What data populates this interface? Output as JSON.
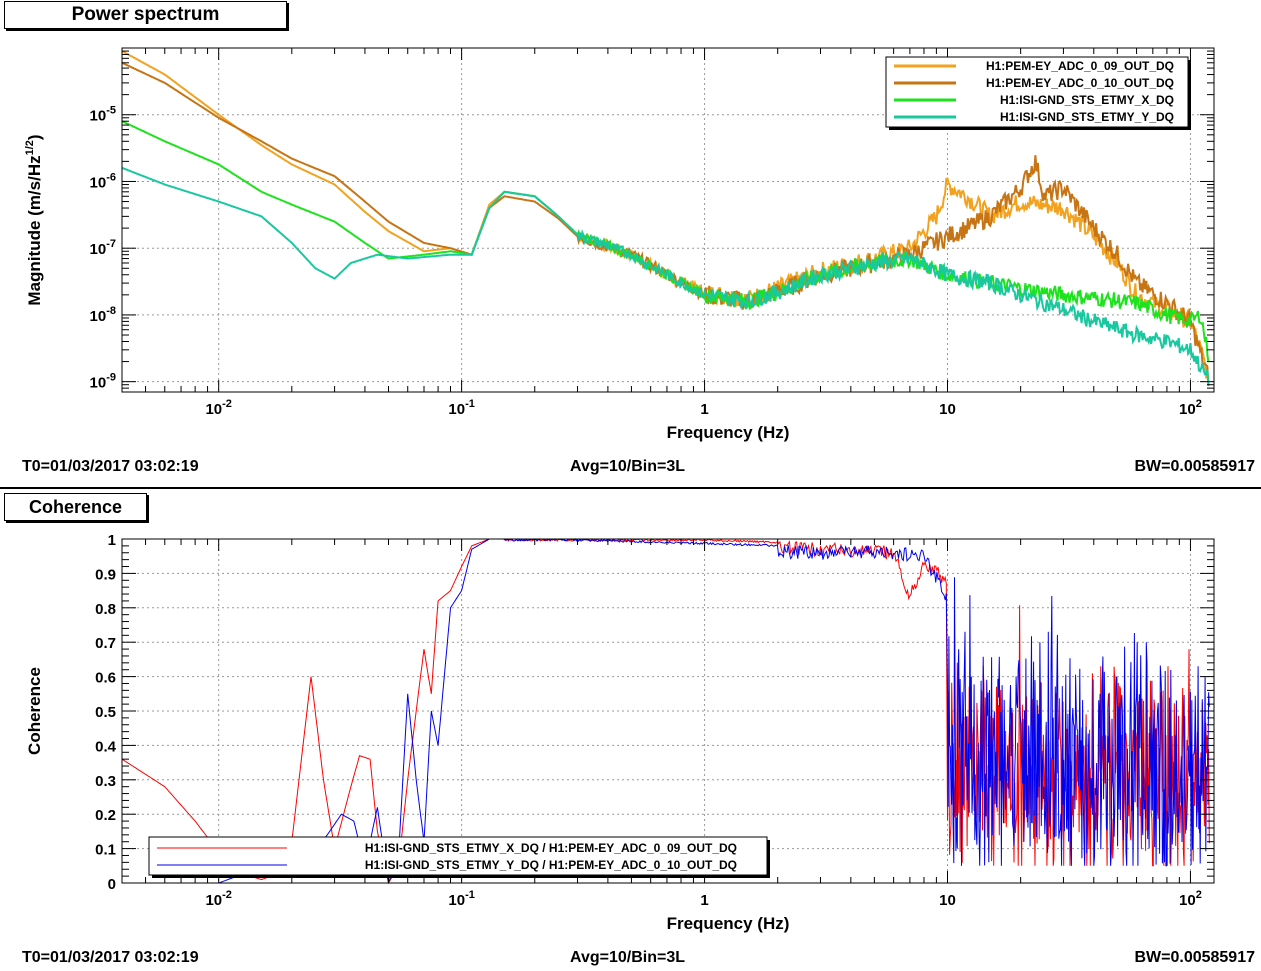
{
  "top_panel": {
    "tab": "Power spectrum",
    "info": {
      "t0": "T0=01/03/2017 03:02:19",
      "avg": "Avg=10/Bin=3L",
      "bw": "BW=0.00585917"
    }
  },
  "bottom_panel": {
    "tab": "Coherence",
    "info": {
      "t0": "T0=01/03/2017 03:02:19",
      "avg": "Avg=10/Bin=3L",
      "bw": "BW=0.00585917"
    }
  },
  "colors": {
    "orange": "#f2a21e",
    "brown": "#c77415",
    "green": "#1ee21e",
    "teal": "#1ac8a0",
    "red": "#ff0000",
    "blue": "#0000ee"
  },
  "chart_data": [
    {
      "type": "line",
      "xlabel": "Frequency (Hz)",
      "ylabel": "Magnitude (m/s/Hz^1/2)",
      "xscale": "log",
      "yscale": "log",
      "xlim": [
        0.004,
        125
      ],
      "ylim": [
        7e-10,
        0.0001
      ],
      "grid": true,
      "legend": "top-right",
      "xticks": [
        {
          "v": 0.01,
          "label": "10^-2"
        },
        {
          "v": 0.1,
          "label": "10^-1"
        },
        {
          "v": 1,
          "label": "1"
        },
        {
          "v": 10,
          "label": "10"
        },
        {
          "v": 100,
          "label": "10^2"
        }
      ],
      "yticks": [
        {
          "v": 1e-09,
          "label": "10^-9"
        },
        {
          "v": 1e-08,
          "label": "10^-8"
        },
        {
          "v": 1e-07,
          "label": "10^-7"
        },
        {
          "v": 1e-06,
          "label": "10^-6"
        },
        {
          "v": 1e-05,
          "label": "10^-5"
        }
      ],
      "series": [
        {
          "name": "H1:PEM-EY_ADC_0_09_OUT_DQ",
          "color": "#f2a21e",
          "noise": 0.18,
          "points": [
            [
              0.004,
              9e-05
            ],
            [
              0.006,
              4e-05
            ],
            [
              0.01,
              1e-05
            ],
            [
              0.015,
              3.5e-06
            ],
            [
              0.02,
              1.8e-06
            ],
            [
              0.03,
              9e-07
            ],
            [
              0.04,
              3.5e-07
            ],
            [
              0.05,
              1.8e-07
            ],
            [
              0.07,
              9e-08
            ],
            [
              0.09,
              1e-07
            ],
            [
              0.11,
              8e-08
            ],
            [
              0.13,
              4.5e-07
            ],
            [
              0.15,
              7e-07
            ],
            [
              0.2,
              6e-07
            ],
            [
              0.25,
              3e-07
            ],
            [
              0.3,
              1.6e-07
            ],
            [
              0.5,
              8e-08
            ],
            [
              0.7,
              4e-08
            ],
            [
              1,
              2.2e-08
            ],
            [
              1.5,
              1.7e-08
            ],
            [
              2,
              2.5e-08
            ],
            [
              3,
              4.5e-08
            ],
            [
              5,
              7e-08
            ],
            [
              7,
              1e-07
            ],
            [
              9,
              3e-07
            ],
            [
              10,
              9e-07
            ],
            [
              12,
              6e-07
            ],
            [
              15,
              3e-07
            ],
            [
              20,
              5e-07
            ],
            [
              30,
              4e-07
            ],
            [
              40,
              1.5e-07
            ],
            [
              50,
              6e-08
            ],
            [
              60,
              2e-08
            ],
            [
              80,
              1.2e-08
            ],
            [
              100,
              8e-09
            ],
            [
              110,
              3e-09
            ],
            [
              120,
              1e-09
            ]
          ]
        },
        {
          "name": "H1:PEM-EY_ADC_0_10_OUT_DQ",
          "color": "#c77415",
          "noise": 0.18,
          "points": [
            [
              0.004,
              6e-05
            ],
            [
              0.006,
              3e-05
            ],
            [
              0.01,
              9e-06
            ],
            [
              0.015,
              4e-06
            ],
            [
              0.02,
              2.2e-06
            ],
            [
              0.03,
              1.2e-06
            ],
            [
              0.04,
              5e-07
            ],
            [
              0.05,
              2.5e-07
            ],
            [
              0.07,
              1.2e-07
            ],
            [
              0.09,
              1e-07
            ],
            [
              0.11,
              8e-08
            ],
            [
              0.13,
              4e-07
            ],
            [
              0.15,
              6e-07
            ],
            [
              0.2,
              5e-07
            ],
            [
              0.25,
              2.8e-07
            ],
            [
              0.3,
              1.5e-07
            ],
            [
              0.5,
              8e-08
            ],
            [
              0.7,
              4e-08
            ],
            [
              1,
              2e-08
            ],
            [
              1.5,
              1.6e-08
            ],
            [
              2,
              2.2e-08
            ],
            [
              3,
              4e-08
            ],
            [
              5,
              6e-08
            ],
            [
              7,
              8e-08
            ],
            [
              10,
              1.5e-07
            ],
            [
              12,
              2e-07
            ],
            [
              15,
              3e-07
            ],
            [
              20,
              8e-07
            ],
            [
              23,
              2e-06
            ],
            [
              25,
              6e-07
            ],
            [
              30,
              8e-07
            ],
            [
              40,
              2e-07
            ],
            [
              50,
              8e-08
            ],
            [
              60,
              3e-08
            ],
            [
              80,
              1.5e-08
            ],
            [
              100,
              8e-09
            ],
            [
              120,
              1e-09
            ]
          ]
        },
        {
          "name": "H1:ISI-GND_STS_ETMY_X_DQ",
          "color": "#1ee21e",
          "noise": 0.15,
          "points": [
            [
              0.004,
              8e-06
            ],
            [
              0.006,
              4e-06
            ],
            [
              0.01,
              1.8e-06
            ],
            [
              0.015,
              7e-07
            ],
            [
              0.02,
              4.5e-07
            ],
            [
              0.03,
              2.5e-07
            ],
            [
              0.04,
              1.2e-07
            ],
            [
              0.05,
              7e-08
            ],
            [
              0.07,
              8e-08
            ],
            [
              0.09,
              9e-08
            ],
            [
              0.11,
              8e-08
            ],
            [
              0.13,
              4e-07
            ],
            [
              0.15,
              7e-07
            ],
            [
              0.2,
              6e-07
            ],
            [
              0.25,
              3e-07
            ],
            [
              0.3,
              1.6e-07
            ],
            [
              0.5,
              8e-08
            ],
            [
              0.7,
              4e-08
            ],
            [
              1,
              2e-08
            ],
            [
              1.5,
              1.6e-08
            ],
            [
              2,
              2.2e-08
            ],
            [
              3,
              4e-08
            ],
            [
              5,
              6e-08
            ],
            [
              7,
              7e-08
            ],
            [
              10,
              4e-08
            ],
            [
              15,
              3e-08
            ],
            [
              20,
              2.5e-08
            ],
            [
              30,
              2e-08
            ],
            [
              40,
              1.8e-08
            ],
            [
              60,
              1.5e-08
            ],
            [
              80,
              1e-08
            ],
            [
              100,
              8e-09
            ],
            [
              110,
              1e-08
            ],
            [
              120,
              2e-09
            ]
          ]
        },
        {
          "name": "H1:ISI-GND_STS_ETMY_Y_DQ",
          "color": "#1ac8a0",
          "noise": 0.15,
          "points": [
            [
              0.004,
              1.6e-06
            ],
            [
              0.006,
              9e-07
            ],
            [
              0.01,
              5e-07
            ],
            [
              0.015,
              3e-07
            ],
            [
              0.02,
              1.2e-07
            ],
            [
              0.025,
              5e-08
            ],
            [
              0.03,
              3.5e-08
            ],
            [
              0.035,
              6e-08
            ],
            [
              0.045,
              8e-08
            ],
            [
              0.06,
              7e-08
            ],
            [
              0.09,
              8e-08
            ],
            [
              0.11,
              8e-08
            ],
            [
              0.13,
              4e-07
            ],
            [
              0.15,
              7e-07
            ],
            [
              0.2,
              6e-07
            ],
            [
              0.25,
              3e-07
            ],
            [
              0.3,
              1.6e-07
            ],
            [
              0.5,
              8e-08
            ],
            [
              0.7,
              4e-08
            ],
            [
              1,
              2e-08
            ],
            [
              1.5,
              1.6e-08
            ],
            [
              2,
              2.2e-08
            ],
            [
              3,
              4e-08
            ],
            [
              5,
              6e-08
            ],
            [
              7,
              7e-08
            ],
            [
              10,
              4e-08
            ],
            [
              15,
              3e-08
            ],
            [
              20,
              2e-08
            ],
            [
              30,
              1.2e-08
            ],
            [
              40,
              8e-09
            ],
            [
              60,
              5e-09
            ],
            [
              80,
              4e-09
            ],
            [
              100,
              3e-09
            ],
            [
              120,
              1e-09
            ]
          ]
        }
      ]
    },
    {
      "type": "line",
      "xlabel": "Frequency (Hz)",
      "ylabel": "Coherence",
      "xscale": "log",
      "xlim": [
        0.004,
        125
      ],
      "ylim": [
        0,
        1
      ],
      "grid": true,
      "legend": "bottom-left",
      "xticks": [
        {
          "v": 0.01,
          "label": "10^-2"
        },
        {
          "v": 0.1,
          "label": "10^-1"
        },
        {
          "v": 1,
          "label": "1"
        },
        {
          "v": 10,
          "label": "10"
        },
        {
          "v": 100,
          "label": "10^2"
        }
      ],
      "yticks": [
        {
          "v": 0,
          "label": "0"
        },
        {
          "v": 0.1,
          "label": "0.1"
        },
        {
          "v": 0.2,
          "label": "0.2"
        },
        {
          "v": 0.3,
          "label": "0.3"
        },
        {
          "v": 0.4,
          "label": "0.4"
        },
        {
          "v": 0.5,
          "label": "0.5"
        },
        {
          "v": 0.6,
          "label": "0.6"
        },
        {
          "v": 0.7,
          "label": "0.7"
        },
        {
          "v": 0.8,
          "label": "0.8"
        },
        {
          "v": 0.9,
          "label": "0.9"
        },
        {
          "v": 1,
          "label": "1"
        }
      ],
      "series": [
        {
          "name": "H1:ISI-GND_STS_ETMY_X_DQ / H1:PEM-EY_ADC_0_09_OUT_DQ",
          "color": "#ff0000",
          "points": [
            [
              0.004,
              0.36
            ],
            [
              0.006,
              0.28
            ],
            [
              0.008,
              0.18
            ],
            [
              0.01,
              0.09
            ],
            [
              0.012,
              0.03
            ],
            [
              0.015,
              0.01
            ],
            [
              0.018,
              0.03
            ],
            [
              0.02,
              0.12
            ],
            [
              0.024,
              0.6
            ],
            [
              0.027,
              0.3
            ],
            [
              0.03,
              0.1
            ],
            [
              0.035,
              0.28
            ],
            [
              0.038,
              0.37
            ],
            [
              0.042,
              0.36
            ],
            [
              0.045,
              0.15
            ],
            [
              0.05,
              0.0
            ],
            [
              0.055,
              0.05
            ],
            [
              0.06,
              0.3
            ],
            [
              0.065,
              0.5
            ],
            [
              0.07,
              0.68
            ],
            [
              0.075,
              0.55
            ],
            [
              0.08,
              0.82
            ],
            [
              0.09,
              0.85
            ],
            [
              0.1,
              0.92
            ],
            [
              0.11,
              0.98
            ],
            [
              0.13,
              1.0
            ],
            [
              0.3,
              1.0
            ],
            [
              1,
              1.0
            ],
            [
              3,
              0.99
            ],
            [
              6,
              0.98
            ],
            [
              7,
              0.85
            ],
            [
              8,
              0.95
            ],
            [
              10,
              0.9
            ]
          ],
          "noisy": {
            "from": 10,
            "to": 120,
            "mid": 0.3,
            "amp": 0.25
          }
        },
        {
          "name": "H1:ISI-GND_STS_ETMY_Y_DQ / H1:PEM-EY_ADC_0_10_OUT_DQ",
          "color": "#0000ee",
          "points": [
            [
              0.004,
              0.0
            ],
            [
              0.01,
              0.0
            ],
            [
              0.013,
              0.03
            ],
            [
              0.018,
              0.02
            ],
            [
              0.022,
              0.05
            ],
            [
              0.028,
              0.14
            ],
            [
              0.032,
              0.2
            ],
            [
              0.036,
              0.18
            ],
            [
              0.04,
              0.05
            ],
            [
              0.045,
              0.22
            ],
            [
              0.05,
              0.0
            ],
            [
              0.055,
              0.08
            ],
            [
              0.06,
              0.55
            ],
            [
              0.065,
              0.3
            ],
            [
              0.07,
              0.12
            ],
            [
              0.075,
              0.5
            ],
            [
              0.08,
              0.4
            ],
            [
              0.09,
              0.8
            ],
            [
              0.1,
              0.85
            ],
            [
              0.11,
              0.97
            ],
            [
              0.13,
              1.0
            ],
            [
              0.3,
              1.0
            ],
            [
              1,
              0.99
            ],
            [
              3,
              0.98
            ],
            [
              6,
              0.98
            ],
            [
              8,
              0.97
            ],
            [
              10,
              0.85
            ]
          ],
          "noisy": {
            "from": 10,
            "to": 120,
            "mid": 0.35,
            "amp": 0.3
          }
        }
      ]
    }
  ]
}
